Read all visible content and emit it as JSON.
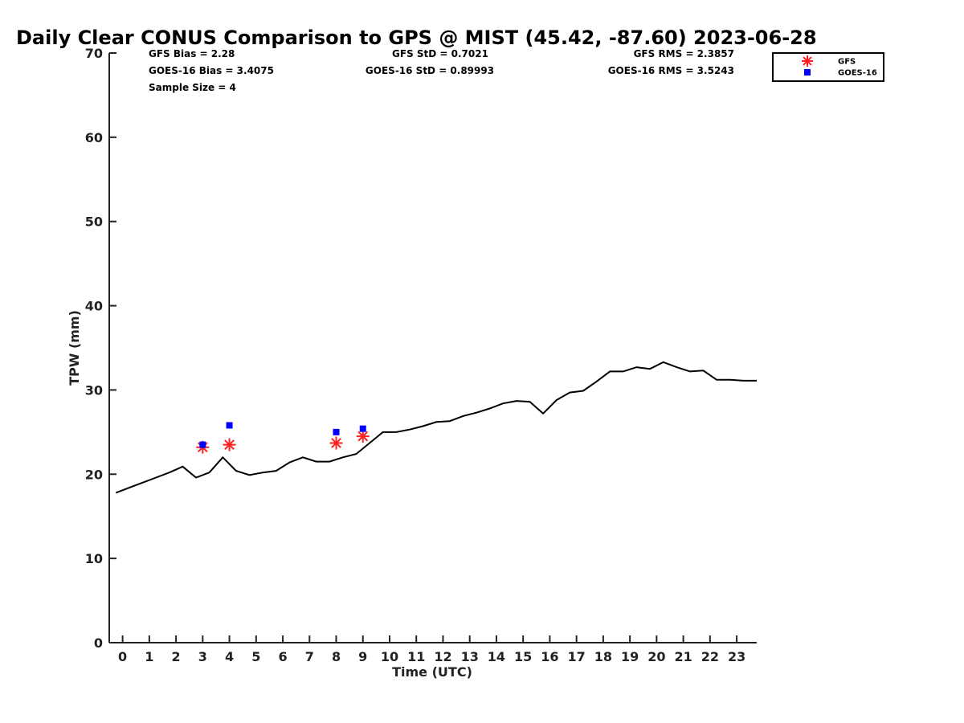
{
  "chart_data": {
    "type": "line",
    "title": "Daily Clear CONUS Comparison to GPS @ MIST (45.42, -87.60) 2023-06-28",
    "xlabel": "Time (UTC)",
    "ylabel": "TPW (mm)",
    "xlim": [
      -0.5,
      23.75
    ],
    "ylim": [
      0,
      70
    ],
    "x_ticks": [
      "0",
      "1",
      "2",
      "3",
      "4",
      "5",
      "6",
      "7",
      "8",
      "9",
      "10",
      "11",
      "12",
      "13",
      "14",
      "15",
      "16",
      "17",
      "18",
      "19",
      "20",
      "21",
      "22",
      "23"
    ],
    "y_ticks": [
      "0",
      "10",
      "20",
      "30",
      "40",
      "50",
      "60",
      "70"
    ],
    "grid": false,
    "legend_position": "top-right",
    "stats": {
      "gfs_bias": "GFS Bias = 2.28",
      "goes_bias": "GOES-16 Bias = 3.4075",
      "sample_size": "Sample Size = 4",
      "gfs_std": "GFS StD = 0.7021",
      "goes_std": "GOES-16 StD = 0.89993",
      "gfs_rms": "GFS RMS = 2.3857",
      "goes_rms": "GOES-16 RMS = 3.5243"
    },
    "series": [
      {
        "type": "line",
        "color": "#000000",
        "x": [
          -0.25,
          0.25,
          0.75,
          1.25,
          1.75,
          2.25,
          2.75,
          3.25,
          3.75,
          4.25,
          4.75,
          5.25,
          5.75,
          6.25,
          6.75,
          7.25,
          7.75,
          8.25,
          8.75,
          9.25,
          9.75,
          10.25,
          10.75,
          11.25,
          11.75,
          12.25,
          12.75,
          13.25,
          13.75,
          14.25,
          14.75,
          15.25,
          15.75,
          16.25,
          16.75,
          17.25,
          17.75,
          18.25,
          18.75,
          19.25,
          19.75,
          20.25,
          20.75,
          21.25,
          21.75,
          22.25,
          22.75,
          23.25,
          23.75
        ],
        "y": [
          17.8,
          18.4,
          19.0,
          19.6,
          20.2,
          20.9,
          19.6,
          20.2,
          22.0,
          20.4,
          19.9,
          20.2,
          20.4,
          21.4,
          22.0,
          21.5,
          21.5,
          22.0,
          22.4,
          23.7,
          25.0,
          25.0,
          25.3,
          25.7,
          26.2,
          26.3,
          26.9,
          27.3,
          27.8,
          28.4,
          28.7,
          28.6,
          27.2,
          28.8,
          29.7,
          29.9,
          31.0,
          32.2,
          32.2,
          32.7,
          32.5,
          33.3,
          32.7,
          32.2,
          32.3,
          31.2,
          31.2,
          31.1,
          31.1
        ]
      },
      {
        "name": "GFS",
        "type": "scatter",
        "marker": "asterisk",
        "color": "#ff2020",
        "x": [
          3,
          4,
          8,
          9
        ],
        "y": [
          23.2,
          23.5,
          23.7,
          24.5
        ]
      },
      {
        "name": "GOES-16",
        "type": "scatter",
        "marker": "square",
        "color": "#0000ff",
        "x": [
          3,
          4,
          8,
          9
        ],
        "y": [
          23.5,
          25.8,
          25.0,
          25.4
        ]
      }
    ]
  }
}
